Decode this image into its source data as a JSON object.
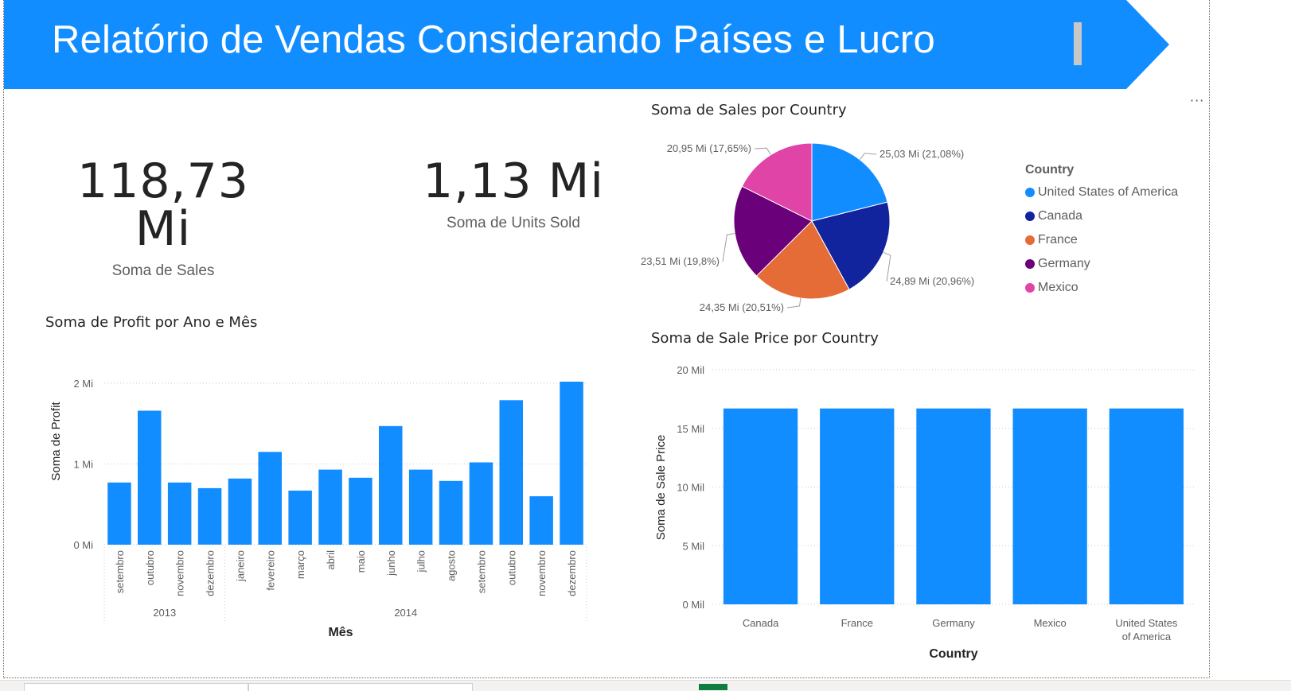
{
  "header": {
    "title": "Relatório de Vendas Considerando Países e Lucro",
    "color": "#118DFF"
  },
  "more_options": "···",
  "cards": [
    {
      "value": "118,73 Mi",
      "label": "Soma de Sales"
    },
    {
      "value": "1,13 Mi",
      "label": "Soma de Units Sold"
    }
  ],
  "pie": {
    "title": "Soma de Sales por Country",
    "legend_title": "Country",
    "slices": [
      {
        "name": "United States of America",
        "value": 25.03,
        "label": "25,03 Mi (21,08%)",
        "color": "#118DFF"
      },
      {
        "name": "Canada",
        "value": 24.89,
        "label": "24,89 Mi (20,96%)",
        "color": "#12239E"
      },
      {
        "name": "France",
        "value": 24.35,
        "label": "24,35 Mi (20,51%)",
        "color": "#E66C37"
      },
      {
        "name": "Germany",
        "value": 23.51,
        "label": "23,51 Mi (19,8%)",
        "color": "#6B007B"
      },
      {
        "name": "Mexico",
        "value": 20.95,
        "label": "20,95 Mi (17,65%)",
        "color": "#E044A7"
      }
    ]
  },
  "profit_chart": {
    "title": "Soma de Profit por Ano e Mês",
    "ylabel": "Soma de Profit",
    "xlabel": "Mês",
    "ticks": [
      "0 Mi",
      "1 Mi",
      "2 Mi"
    ],
    "bar_color": "#118DFF",
    "years": [
      {
        "year": "2013",
        "count": 4
      },
      {
        "year": "2014",
        "count": 12
      }
    ]
  },
  "saleprice_chart": {
    "title": "Soma de Sale Price por Country",
    "ylabel": "Soma de Sale Price",
    "xlabel": "Country",
    "ticks": [
      "0 Mil",
      "5 Mil",
      "10 Mil",
      "15 Mil",
      "20 Mil"
    ],
    "bar_color": "#118DFF",
    "category_labels": [
      [
        "Canada"
      ],
      [
        "France"
      ],
      [
        "Germany"
      ],
      [
        "Mexico"
      ],
      [
        "United States",
        "of America"
      ]
    ]
  },
  "chart_data": [
    {
      "type": "pie",
      "title": "Soma de Sales por Country",
      "categories": [
        "United States of America",
        "Canada",
        "France",
        "Germany",
        "Mexico"
      ],
      "values": [
        25.03,
        24.89,
        24.35,
        23.51,
        20.95
      ],
      "unit": "Mi"
    },
    {
      "type": "bar",
      "title": "Soma de Profit por Ano e Mês",
      "categories": [
        "setembro",
        "outubro",
        "novembro",
        "dezembro",
        "janeiro",
        "fevereiro",
        "março",
        "abril",
        "maio",
        "junho",
        "julho",
        "agosto",
        "setembro",
        "outubro",
        "novembro",
        "dezembro"
      ],
      "years": [
        "2013",
        "2013",
        "2013",
        "2013",
        "2014",
        "2014",
        "2014",
        "2014",
        "2014",
        "2014",
        "2014",
        "2014",
        "2014",
        "2014",
        "2014",
        "2014"
      ],
      "values": [
        0.77,
        1.66,
        0.77,
        0.7,
        0.82,
        1.15,
        0.67,
        0.93,
        0.83,
        1.47,
        0.93,
        0.79,
        1.02,
        1.79,
        0.6,
        2.02
      ],
      "xlabel": "Mês",
      "ylabel": "Soma de Profit",
      "ylim": [
        0,
        2
      ],
      "unit": "Mi"
    },
    {
      "type": "bar",
      "title": "Soma de Sale Price por Country",
      "categories": [
        "Canada",
        "France",
        "Germany",
        "Mexico",
        "United States of America"
      ],
      "values": [
        16.7,
        16.7,
        16.7,
        16.7,
        16.7
      ],
      "xlabel": "Country",
      "ylabel": "Soma de Sale Price",
      "ylim": [
        0,
        20
      ],
      "unit": "Mil"
    }
  ]
}
